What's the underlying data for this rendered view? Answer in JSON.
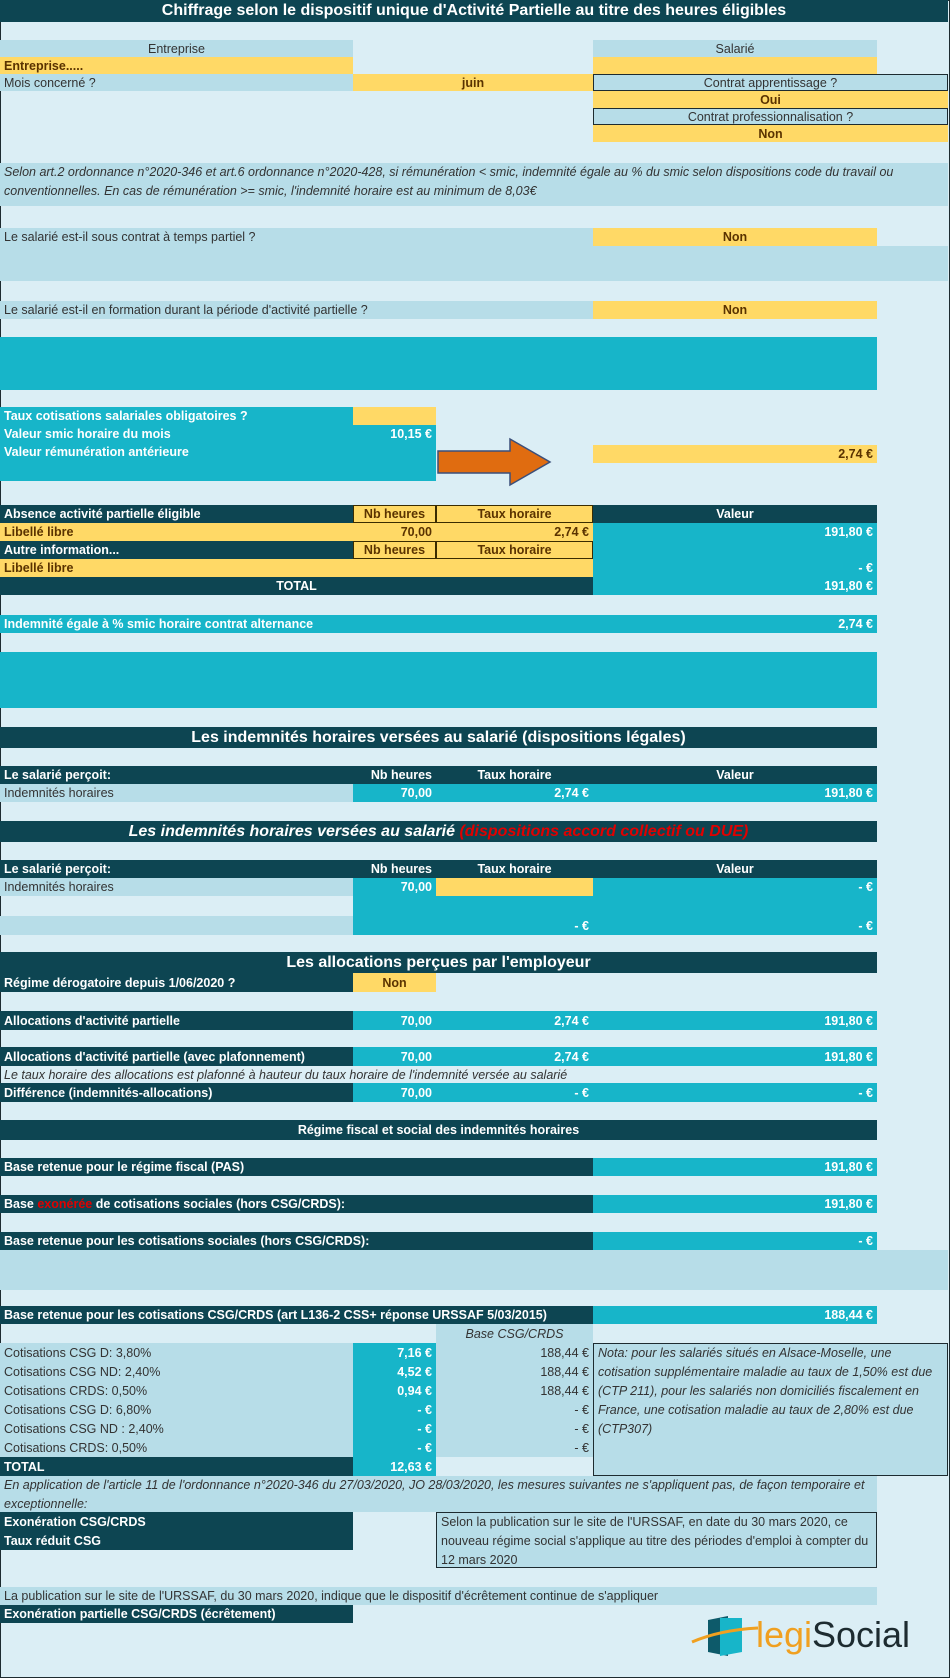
{
  "title": "Chiffrage selon le dispositif unique d'Activité Partielle au titre des heures éligibles",
  "header": {
    "entreprise_col": "Entreprise",
    "salarie_col": "Salarié",
    "entreprise_name": "Entreprise.....",
    "mois_label": "Mois concerné ?",
    "mois_value": "juin",
    "apprentissage_label": "Contrat apprentissage ?",
    "apprentissage_value": "Oui",
    "professionnalisation_label": "Contrat professionnalisation ?",
    "professionnalisation_value": "Non"
  },
  "note_smic": "Selon art.2 ordonnance n°2020-346 et art.6 ordonnance n°2020-428, si rémunération < smic, indemnité égale au % du smic selon dispositions code du travail ou conventionnelles. En cas de rémunération >= smic, l'indemnité horaire est au minimum de 8,03€",
  "questions": {
    "temps_partiel_label": "Le salarié est-il sous contrat à temps partiel ?",
    "temps_partiel_value": "Non",
    "formation_label": "Le salarié est-il en formation durant la période d'activité partielle ?",
    "formation_value": "Non"
  },
  "parametres": {
    "taux_label": "Taux cotisations salariales obligatoires ?",
    "smic_label": "Valeur smic horaire du mois",
    "smic_value": "10,15 €",
    "remu_label": "Valeur rémunération antérieure",
    "result_value": "2,74 €"
  },
  "absence": {
    "header": "Absence activité partielle éligible",
    "nb_heures": "Nb heures",
    "taux_horaire": "Taux horaire",
    "valeur": "Valeur",
    "row1_label": "Libellé libre",
    "row1_heures": "70,00",
    "row1_taux": "2,74 €",
    "row1_valeur": "191,80 €",
    "autre": "Autre information...",
    "row2_label": "Libellé libre",
    "row2_valeur": "-   €",
    "total_label": "TOTAL",
    "total_valeur": "191,80 €"
  },
  "alternance": {
    "label": "Indemnité égale à % smic horaire contrat alternance",
    "value": "2,74 €"
  },
  "legales": {
    "title": "Les indemnités horaires versées au salarié (dispositions légales)",
    "percoit": "Le salarié perçoit:",
    "nb_heures": "Nb heures",
    "taux_horaire": "Taux horaire",
    "valeur": "Valeur",
    "row_label": "Indemnités horaires",
    "heures": "70,00",
    "taux": "2,74 €",
    "montant": "191,80 €"
  },
  "accord": {
    "title": "Les indemnités horaires versées au salarié ",
    "title_red": "(dispositions accord collectif ou DUE)",
    "percoit": "Le salarié perçoit:",
    "nb_heures": "Nb heures",
    "taux_horaire": "Taux horaire",
    "valeur": "Valeur",
    "row_label": "Indemnités horaires",
    "heures": "70,00",
    "montant": "-   €",
    "sub_taux": "-   €",
    "sub_montant": "-   €"
  },
  "allocations": {
    "title": "Les allocations perçues par l'employeur",
    "regime_label": "Régime dérogatoire depuis 1/06/2020 ?",
    "regime_value": "Non",
    "alloc_label": "Allocations d'activité partielle",
    "alloc_heures": "70,00",
    "alloc_taux": "2,74 €",
    "alloc_valeur": "191,80 €",
    "plaf_label": "Allocations d'activité partielle (avec plafonnement)",
    "plaf_heures": "70,00",
    "plaf_taux": "2,74 €",
    "plaf_valeur": "191,80 €",
    "plaf_note": "Le taux horaire des allocations est plafonné à hauteur du taux horaire de l'indemnité versée au salarié",
    "diff_label": "Différence (indemnités-allocations)",
    "diff_heures": "70,00",
    "diff_taux": "-   €",
    "diff_valeur": "-   €"
  },
  "regime": {
    "title": "Régime fiscal et social des indemnités horaires",
    "pas_label": "Base retenue pour le régime fiscal (PAS)",
    "pas_value": "191,80 €",
    "exo_pre": "Base ",
    "exo_red": "exonérée",
    "exo_post": " de cotisations sociales (hors CSG/CRDS):",
    "exo_value": "191,80 €",
    "cot_label": "Base retenue pour les cotisations sociales (hors CSG/CRDS):",
    "cot_value": "-   €",
    "csg_label": "Base retenue pour les cotisations CSG/CRDS (art L136-2 CSS+ réponse URSSAF 5/03/2015)",
    "csg_value": "188,44 €",
    "base_header": "Base CSG/CRDS"
  },
  "cotisations": [
    {
      "label": "Cotisations CSG D: 3,80%",
      "montant": "7,16 €",
      "base": "188,44 €"
    },
    {
      "label": "Cotisations CSG ND: 2,40%",
      "montant": "4,52 €",
      "base": "188,44 €"
    },
    {
      "label": "Cotisations CRDS: 0,50%",
      "montant": "0,94 €",
      "base": "188,44 €"
    },
    {
      "label": "Cotisations CSG D: 6,80%",
      "montant": "-   €",
      "base": "-   €"
    },
    {
      "label": "Cotisations CSG ND : 2,40%",
      "montant": "-   €",
      "base": "-   €"
    },
    {
      "label": "Cotisations CRDS: 0,50%",
      "montant": "-   €",
      "base": "-   €"
    }
  ],
  "cot_total": {
    "label": "TOTAL",
    "value": "12,63 €"
  },
  "nota": "Nota: pour les salariés situés en Alsace-Moselle, une cotisation supplémentaire maladie au taux de 1,50% est due (CTP 211), pour les salariés non domiciliés fiscalement en France, une cotisation maladie au taux de 2,80% est due (CTP307)",
  "ordonnance_note": "En application de l'article 11 de l'ordonnance n°2020-346 du 27/03/2020, JO 28/03/2020, les mesures suivantes ne s'appliquent pas, de façon temporaire et exceptionnelle:",
  "exo_csg": "Exonération CSG/CRDS",
  "taux_reduit": "Taux réduit CSG",
  "urssaf_note": "Selon la publication sur le site de l'URSSAF, en date du 30 mars 2020, ce nouveau régime social s'applique au titre des périodes d'emploi à compter du 12 mars 2020",
  "ecretement_note": "La publication sur le site de l'URSSAF, du 30 mars 2020, indique que le dispositif d'écrêtement continue de s'appliquer",
  "ecretement_label": "Exonération partielle CSG/CRDS (écrêtement)",
  "logo": {
    "part1": "legi",
    "part2": "Social"
  },
  "colors": {
    "dark": "#0d4552",
    "teal": "#17b5c9",
    "light": "#b7dde8",
    "yellow": "#ffd966",
    "background": "#dbeef5",
    "arrow": "#e06c10",
    "red": "#e00000"
  }
}
